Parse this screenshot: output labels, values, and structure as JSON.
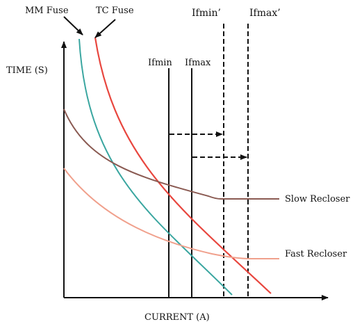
{
  "labels": {
    "mm_fuse": "MM Fuse",
    "tc_fuse": "TC Fuse",
    "ifmin_prime": "Ifmin’",
    "ifmax_prime": "Ifmax’",
    "ifmin": "Ifmin",
    "ifmax": "Ifmax",
    "y_axis": "TIME (S)",
    "x_axis": "CURRENT (A)",
    "slow_recloser": "Slow Recloser",
    "fast_recloser": "Fast Recloser"
  },
  "colors": {
    "axis": "#111111",
    "mm_fuse_curve": "#3aa6a0",
    "tc_fuse_curve": "#e8463e",
    "slow_recloser_curve": "#8a5a52",
    "fast_recloser_curve": "#f0a08c",
    "marker_lines": "#111111"
  }
}
